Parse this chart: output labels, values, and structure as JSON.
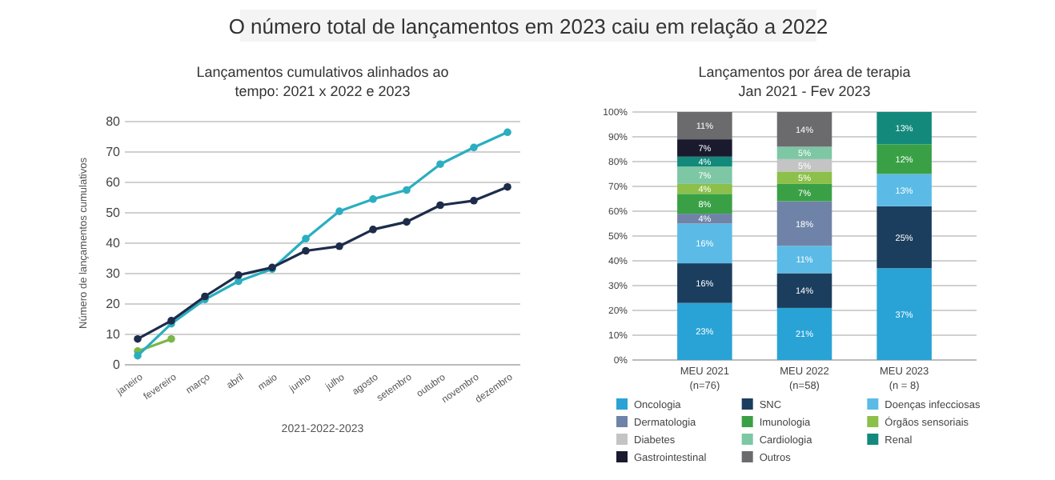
{
  "chart_data": [
    {
      "type": "line",
      "title": "Lançamentos cumulativos alinhados ao",
      "subtitle": "tempo: 2021 x 2022 e 2023",
      "ylabel": "Número de lançamentos cumulativos",
      "xlabel": "2021-2022-2023",
      "annotations": [
        "O número total de lançamentos em 2023 caiu em relação a 2022"
      ],
      "categories": [
        "janeiro",
        "fevereiro",
        "março",
        "abril",
        "maio",
        "junho",
        "julho",
        "agosto",
        "setembro",
        "outubro",
        "novembro",
        "dezembro"
      ],
      "ylim": [
        0,
        80
      ],
      "yticks": [
        0,
        10,
        20,
        30,
        40,
        50,
        60,
        70,
        80
      ],
      "grid": "y",
      "marker": "circle",
      "series": [
        {
          "color": "#1d2c4a",
          "values": [
            8.5,
            14.5,
            22.5,
            29.5,
            32,
            37.5,
            39,
            44.5,
            47,
            52.5,
            54,
            58.5
          ]
        },
        {
          "color": "#2aaec0",
          "values": [
            3,
            13.5,
            21.5,
            27.5,
            31.5,
            41.5,
            50.5,
            54.5,
            57.5,
            66,
            71.5,
            76.5
          ]
        },
        {
          "color": "#7ab648",
          "values": [
            4.5,
            8.5,
            null,
            null,
            null,
            null,
            null,
            null,
            null,
            null,
            null,
            null
          ]
        }
      ]
    },
    {
      "type": "bar",
      "stacked": true,
      "title": "Lançamentos por área de terapia",
      "subtitle": "Jan 2021 - Fev 2023",
      "categories": [
        "MEU 2021\n(n=76)",
        "MEU 2022\n(n=58)",
        "MEU 2023\n(n = 8)"
      ],
      "ylim": [
        0,
        100
      ],
      "yticks": [
        {
          "value": 0,
          "label": "0%"
        },
        {
          "value": 10,
          "label": "10%"
        },
        {
          "value": 20,
          "label": "20%"
        },
        {
          "value": 30,
          "label": "30%"
        },
        {
          "value": 40,
          "label": "40%"
        },
        {
          "value": 50,
          "label": "50%"
        },
        {
          "value": 60,
          "label": "60%"
        },
        {
          "value": 70,
          "label": "70%"
        },
        {
          "value": 80,
          "label": "80%"
        },
        {
          "value": 90,
          "label": "90%"
        },
        {
          "value": 100,
          "label": "100%"
        }
      ],
      "grid": "y",
      "legend": "bottom",
      "series": [
        {
          "name": "Oncologia",
          "color": "#29a3d6",
          "values": [
            23,
            21,
            37
          ],
          "value_labels": [
            "23%",
            "21%",
            "37%"
          ]
        },
        {
          "name": "SNC",
          "color": "#1b3e5e",
          "values": [
            16,
            14,
            25
          ],
          "value_labels": [
            "16%",
            "14%",
            "25%"
          ]
        },
        {
          "name": "Doenças infecciosas",
          "color": "#5bbbe6",
          "values": [
            16,
            11,
            13
          ],
          "value_labels": [
            "16%",
            "11%",
            "13%"
          ]
        },
        {
          "name": "Dermatologia",
          "color": "#6f83a8",
          "values": [
            4,
            18,
            null
          ],
          "value_labels": [
            "4%",
            "18%",
            null
          ]
        },
        {
          "name": "Imunologia",
          "color": "#3aa046",
          "values": [
            8,
            7,
            12
          ],
          "value_labels": [
            "8%",
            "7%",
            "12%"
          ]
        },
        {
          "name": "Órgãos sensoriais",
          "color": "#8cc04a",
          "values": [
            4,
            5,
            null
          ],
          "value_labels": [
            "4%",
            "5%",
            null
          ]
        },
        {
          "name": "Diabetes",
          "color": "#c4c4c4",
          "values": [
            null,
            5,
            null
          ],
          "value_labels": [
            null,
            "5%",
            null
          ]
        },
        {
          "name": "Cardiologia",
          "color": "#7dc7a4",
          "values": [
            7,
            5,
            null
          ],
          "value_labels": [
            "7%",
            "5%",
            null
          ]
        },
        {
          "name": "Renal",
          "color": "#13897c",
          "values": [
            4,
            null,
            13
          ],
          "value_labels": [
            "4%",
            null,
            "13%"
          ]
        },
        {
          "name": "Gastrointestinal",
          "color": "#1a1a2e",
          "values": [
            7,
            null,
            null
          ],
          "value_labels": [
            "7%",
            null,
            null
          ]
        },
        {
          "name": "Outros",
          "color": "#6b6b6e",
          "values": [
            11,
            14,
            null
          ],
          "value_labels": [
            "11%",
            "14%",
            null
          ]
        }
      ]
    }
  ]
}
